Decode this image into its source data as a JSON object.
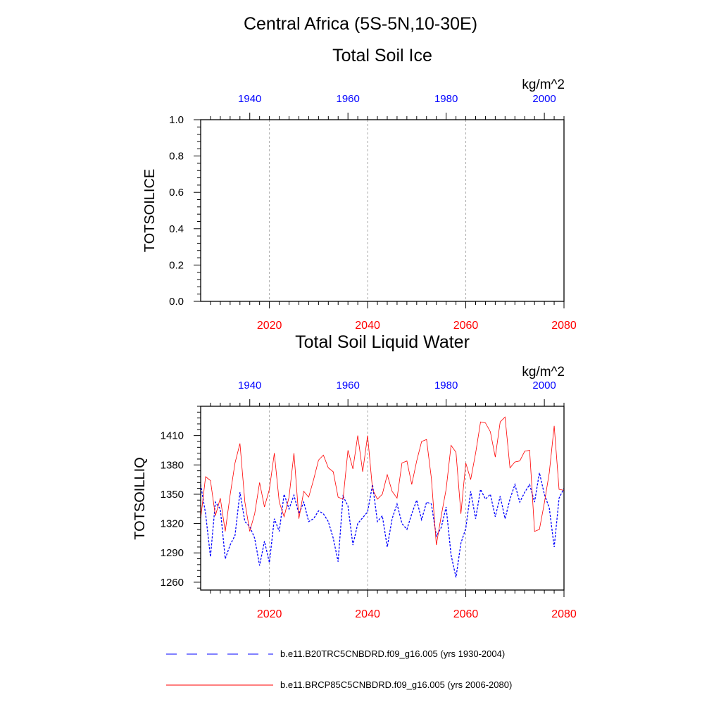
{
  "page": {
    "region_title": "Central Africa (5S-5N,10-30E)"
  },
  "colors": {
    "bottom_axis": "#ff0000",
    "top_axis": "#0000ff",
    "series_historical": "#0000ff",
    "series_future": "#ff0000",
    "grid": "#aaaaaa",
    "frame": "#000000"
  },
  "chart_data": [
    {
      "type": "line",
      "title": "Total Soil Ice",
      "units": "kg/m^2",
      "ylabel": "TOTSOILICE",
      "ylim": [
        0,
        1
      ],
      "yticks": [
        0,
        0.2,
        0.4,
        0.6,
        0.8,
        1.0
      ],
      "ytick_labels": [
        "0.0",
        "0.2",
        "0.4",
        "0.6",
        "0.8",
        "1.0"
      ],
      "x_bottom": {
        "range": [
          2006,
          2080
        ],
        "ticks": [
          2020,
          2040,
          2060,
          2080
        ],
        "color": "red"
      },
      "x_top": {
        "range": [
          1930,
          2004
        ],
        "ticks": [
          1940,
          1960,
          1980,
          2000
        ],
        "color": "blue"
      },
      "grid_x": [
        2020,
        2040,
        2060
      ],
      "series": []
    },
    {
      "type": "line",
      "title": "Total Soil Liquid Water",
      "units": "kg/m^2",
      "ylabel": "TOTSOILLIQ",
      "ylim": [
        1252,
        1440
      ],
      "yticks": [
        1260,
        1290,
        1320,
        1350,
        1380,
        1410
      ],
      "ytick_labels": [
        "1260",
        "1290",
        "1320",
        "1350",
        "1380",
        "1410"
      ],
      "x_bottom": {
        "range": [
          2006,
          2080
        ],
        "ticks": [
          2020,
          2040,
          2060,
          2080
        ],
        "color": "red"
      },
      "x_top": {
        "range": [
          1930,
          2004
        ],
        "ticks": [
          1940,
          1960,
          1980,
          2000
        ],
        "color": "blue"
      },
      "grid_x": [
        2020,
        2040,
        2060
      ],
      "series": [
        {
          "name": "b.e11.B20TRC5CNBDRD.f09_g16.005 (yrs 1930-2004)",
          "axis": "top",
          "style": "dashed",
          "color": "blue",
          "x_start": 1930,
          "values": [
            1360,
            1330,
            1286,
            1342,
            1335,
            1284,
            1298,
            1308,
            1352,
            1322,
            1317,
            1305,
            1277,
            1302,
            1280,
            1325,
            1312,
            1350,
            1335,
            1349,
            1330,
            1342,
            1322,
            1325,
            1333,
            1330,
            1322,
            1305,
            1281,
            1348,
            1338,
            1298,
            1320,
            1326,
            1332,
            1360,
            1322,
            1328,
            1296,
            1325,
            1340,
            1320,
            1314,
            1330,
            1344,
            1324,
            1342,
            1340,
            1307,
            1316,
            1337,
            1288,
            1265,
            1300,
            1315,
            1353,
            1325,
            1355,
            1345,
            1350,
            1327,
            1348,
            1325,
            1345,
            1360,
            1342,
            1352,
            1360,
            1342,
            1372,
            1350,
            1336,
            1296,
            1346,
            1356
          ]
        },
        {
          "name": "b.e11.BRCP85C5CNBDRD.f09_g16.005 (yrs 2006-2080)",
          "axis": "bottom",
          "style": "solid",
          "color": "red",
          "x_start": 2006,
          "values": [
            1325,
            1368,
            1364,
            1328,
            1346,
            1312,
            1349,
            1382,
            1402,
            1342,
            1312,
            1330,
            1362,
            1337,
            1355,
            1392,
            1342,
            1327,
            1347,
            1392,
            1325,
            1353,
            1347,
            1365,
            1385,
            1390,
            1377,
            1373,
            1347,
            1345,
            1395,
            1376,
            1410,
            1373,
            1410,
            1355,
            1345,
            1350,
            1370,
            1353,
            1346,
            1382,
            1384,
            1360,
            1384,
            1404,
            1406,
            1366,
            1298,
            1328,
            1355,
            1400,
            1393,
            1330,
            1382,
            1365,
            1392,
            1424,
            1423,
            1414,
            1388,
            1424,
            1429,
            1377,
            1383,
            1384,
            1394,
            1395,
            1312,
            1314,
            1341,
            1372,
            1420,
            1355,
            1354
          ]
        }
      ]
    }
  ],
  "legend": [
    {
      "label": "b.e11.B20TRC5CNBDRD.f09_g16.005 (yrs 1930-2004)",
      "style": "dashed",
      "color": "blue"
    },
    {
      "label": "b.e11.BRCP85C5CNBDRD.f09_g16.005 (yrs 2006-2080)",
      "style": "solid",
      "color": "red"
    }
  ]
}
